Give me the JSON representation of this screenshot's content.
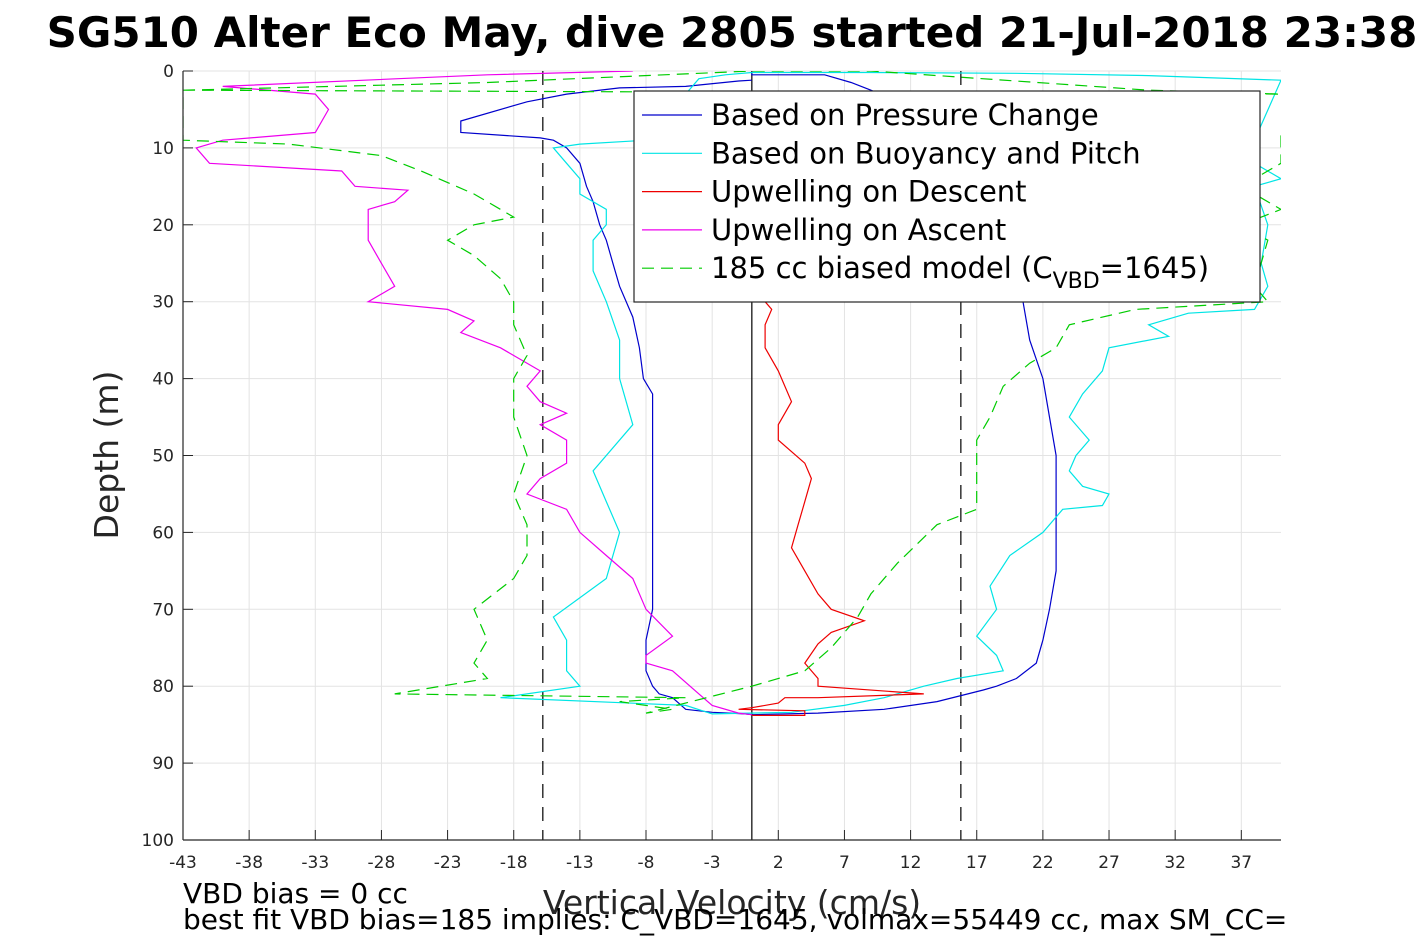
{
  "chart_data": {
    "type": "line",
    "title": "SG510 Alter Eco May, dive 2805 started 21-Jul-2018 23:38",
    "xlabel": "Vertical Velocity (cm/s)",
    "ylabel": "Depth (m)",
    "xlim": [
      -43,
      40
    ],
    "ylim": [
      0,
      100
    ],
    "y_reversed": true,
    "grid": true,
    "x_ticks": [
      -43,
      -38,
      -33,
      -28,
      -23,
      -18,
      -13,
      -8,
      -3,
      2,
      7,
      12,
      17,
      22,
      27,
      32,
      37
    ],
    "y_ticks": [
      0,
      10,
      20,
      30,
      40,
      50,
      60,
      70,
      80,
      90,
      100
    ],
    "legend_position": "top-right",
    "legend_label_parts": {
      "prefix": "185 cc biased model (C",
      "sub": "VBD",
      "suffix": "=1645)"
    },
    "reference_lines": [
      {
        "orientation": "vertical",
        "x": 0,
        "style": "solid",
        "color": "#000000"
      },
      {
        "orientation": "vertical",
        "x": -15.8,
        "style": "dashed",
        "color": "#000000"
      },
      {
        "orientation": "vertical",
        "x": 15.8,
        "style": "dashed",
        "color": "#000000"
      }
    ],
    "series": [
      {
        "name": "Based on Pressure Change",
        "color": "#0000cc",
        "style": "solid",
        "points": [
          [
            0,
            0.2
          ],
          [
            0,
            0.5
          ],
          [
            5.5,
            0.5
          ],
          [
            7.5,
            1.5
          ],
          [
            9,
            2.5
          ],
          [
            11,
            4
          ],
          [
            12.5,
            6
          ],
          [
            14,
            10
          ],
          [
            15.5,
            14
          ],
          [
            17,
            18
          ],
          [
            18.5,
            22
          ],
          [
            19.5,
            26
          ],
          [
            20.5,
            30
          ],
          [
            21,
            35
          ],
          [
            22,
            40
          ],
          [
            22.5,
            45
          ],
          [
            23,
            50
          ],
          [
            23,
            55
          ],
          [
            23,
            60
          ],
          [
            23,
            65
          ],
          [
            22.5,
            70
          ],
          [
            22,
            74
          ],
          [
            21.5,
            77
          ],
          [
            20,
            79
          ],
          [
            18.5,
            80
          ],
          [
            17.5,
            80.5
          ],
          [
            14,
            82
          ],
          [
            10,
            83
          ],
          [
            5,
            83.5
          ],
          [
            0,
            83.7
          ],
          [
            -0.5,
            83.6
          ],
          [
            -3,
            83.4
          ],
          [
            -5,
            83
          ],
          [
            -6,
            81.5
          ],
          [
            -7,
            81
          ],
          [
            -7.5,
            80
          ],
          [
            -8,
            78
          ],
          [
            -8,
            74
          ],
          [
            -7.5,
            70
          ],
          [
            -7.5,
            65
          ],
          [
            -7.5,
            60
          ],
          [
            -7.5,
            55
          ],
          [
            -7.5,
            50
          ],
          [
            -7.5,
            45
          ],
          [
            -7.5,
            42
          ],
          [
            -8.2,
            40
          ],
          [
            -8.5,
            36
          ],
          [
            -9,
            32
          ],
          [
            -10,
            28
          ],
          [
            -10.5,
            25
          ],
          [
            -11,
            22
          ],
          [
            -11.5,
            20
          ],
          [
            -12,
            17
          ],
          [
            -12.5,
            15
          ],
          [
            -13,
            12
          ],
          [
            -14,
            10
          ],
          [
            -15,
            9
          ],
          [
            -16,
            8.7
          ],
          [
            -22,
            8
          ],
          [
            -22,
            6.5
          ],
          [
            -17,
            4
          ],
          [
            -14,
            3
          ],
          [
            -10,
            2.2
          ],
          [
            -5,
            2
          ],
          [
            -1,
            1.3
          ],
          [
            0,
            1.2
          ]
        ]
      },
      {
        "name": "Based on Buoyancy and Pitch",
        "color": "#00e5e5",
        "style": "solid",
        "points": [
          [
            0,
            0.2
          ],
          [
            9,
            0.2
          ],
          [
            20,
            0.3
          ],
          [
            30,
            0.6
          ],
          [
            40,
            1.2
          ],
          [
            38,
            9
          ],
          [
            38,
            12
          ],
          [
            40,
            14
          ],
          [
            38,
            15
          ],
          [
            39,
            20
          ],
          [
            38.5,
            25
          ],
          [
            39,
            28
          ],
          [
            38,
            31
          ],
          [
            33,
            31.5
          ],
          [
            30,
            33
          ],
          [
            31.5,
            34.5
          ],
          [
            27,
            36
          ],
          [
            26.5,
            39
          ],
          [
            25,
            42
          ],
          [
            24,
            45
          ],
          [
            25.5,
            48
          ],
          [
            24.5,
            50
          ],
          [
            24,
            52
          ],
          [
            25,
            54
          ],
          [
            27,
            55
          ],
          [
            26.5,
            56.5
          ],
          [
            23.5,
            57
          ],
          [
            22,
            60
          ],
          [
            19.5,
            63
          ],
          [
            18,
            67
          ],
          [
            18.5,
            70
          ],
          [
            17,
            73.5
          ],
          [
            18.5,
            76
          ],
          [
            19,
            78
          ],
          [
            15.5,
            79
          ],
          [
            13,
            80
          ],
          [
            10,
            81.5
          ],
          [
            7,
            82.5
          ],
          [
            3,
            83.4
          ],
          [
            -3,
            83.6
          ],
          [
            -5,
            82.5
          ],
          [
            -19,
            81.5
          ],
          [
            -13,
            80
          ],
          [
            -14,
            78
          ],
          [
            -14,
            74
          ],
          [
            -15,
            71
          ],
          [
            -11,
            66
          ],
          [
            -10,
            60
          ],
          [
            -11,
            56
          ],
          [
            -12,
            52
          ],
          [
            -9,
            46
          ],
          [
            -10,
            40
          ],
          [
            -10,
            35
          ],
          [
            -11,
            30
          ],
          [
            -12,
            26
          ],
          [
            -12,
            22
          ],
          [
            -11,
            20
          ],
          [
            -11,
            18
          ],
          [
            -13,
            16
          ],
          [
            -13,
            14
          ],
          [
            -14,
            12
          ],
          [
            -15,
            10
          ],
          [
            -13,
            9.5
          ],
          [
            -8,
            9
          ],
          [
            -4,
            1
          ],
          [
            -2,
            0.5
          ],
          [
            0,
            0.2
          ]
        ]
      },
      {
        "name": "Upwelling on Descent",
        "color": "#ee0000",
        "style": "solid",
        "points": [
          [
            1,
            30
          ],
          [
            1.5,
            31
          ],
          [
            1,
            33
          ],
          [
            1,
            36
          ],
          [
            2,
            39
          ],
          [
            3,
            43
          ],
          [
            2,
            46
          ],
          [
            2,
            48
          ],
          [
            4,
            51
          ],
          [
            4.5,
            53
          ],
          [
            4,
            56
          ],
          [
            3.5,
            59
          ],
          [
            3,
            62
          ],
          [
            4,
            65
          ],
          [
            5,
            68
          ],
          [
            6,
            70
          ],
          [
            8.5,
            71.5
          ],
          [
            6,
            73
          ],
          [
            5,
            74.5
          ],
          [
            4,
            77
          ],
          [
            5,
            79
          ],
          [
            5,
            80
          ],
          [
            13,
            81
          ],
          [
            5,
            81.5
          ],
          [
            2.5,
            81.5
          ],
          [
            2,
            82.2
          ],
          [
            0,
            82.8
          ],
          [
            -1,
            83
          ],
          [
            4,
            83.2
          ],
          [
            4,
            83.8
          ],
          [
            0,
            83.8
          ]
        ]
      },
      {
        "name": "Upwelling on Ascent",
        "color": "#ee00ee",
        "style": "solid",
        "points": [
          [
            -9,
            0
          ],
          [
            -20,
            0.5
          ],
          [
            -40,
            2
          ],
          [
            -33,
            3
          ],
          [
            -32,
            5
          ],
          [
            -33,
            8
          ],
          [
            -40,
            9
          ],
          [
            -42,
            10
          ],
          [
            -41,
            12
          ],
          [
            -31,
            13
          ],
          [
            -30,
            15
          ],
          [
            -26,
            15.5
          ],
          [
            -27,
            17
          ],
          [
            -29,
            18
          ],
          [
            -29,
            20
          ],
          [
            -29,
            22
          ],
          [
            -28,
            25
          ],
          [
            -27,
            28
          ],
          [
            -29,
            30
          ],
          [
            -23,
            31
          ],
          [
            -21,
            32.5
          ],
          [
            -22,
            34
          ],
          [
            -19,
            36
          ],
          [
            -16,
            39
          ],
          [
            -17,
            41
          ],
          [
            -16,
            43
          ],
          [
            -14,
            44.5
          ],
          [
            -16,
            46
          ],
          [
            -14,
            48
          ],
          [
            -14,
            51
          ],
          [
            -16,
            53
          ],
          [
            -17,
            55
          ],
          [
            -14,
            57
          ],
          [
            -13,
            60
          ],
          [
            -11,
            63
          ],
          [
            -9,
            66
          ],
          [
            -8,
            70
          ],
          [
            -6,
            73.5
          ],
          [
            -8,
            76
          ],
          [
            -8,
            77
          ],
          [
            -6,
            78
          ],
          [
            -4,
            81
          ],
          [
            -3,
            82.5
          ],
          [
            -1,
            83.5
          ],
          [
            0,
            83.7
          ]
        ]
      },
      {
        "name": "185 cc biased model (C_VBD=1645)",
        "color": "#00cc00",
        "style": "dashed",
        "points": [
          [
            -43,
            2.5
          ],
          [
            40,
            3
          ],
          [
            30,
            2.5
          ],
          [
            9,
            0
          ],
          [
            0,
            0
          ],
          [
            -20,
            1.5
          ],
          [
            -43,
            2.5
          ],
          [
            -43,
            9
          ],
          [
            -35,
            9.5
          ],
          [
            -28,
            11
          ],
          [
            -25,
            13
          ],
          [
            -21,
            16
          ],
          [
            -18,
            19
          ],
          [
            -21,
            20
          ],
          [
            -23,
            22
          ],
          [
            -21,
            24
          ],
          [
            -19,
            27
          ],
          [
            -18,
            30
          ],
          [
            -18,
            33
          ],
          [
            -17,
            37
          ],
          [
            -18,
            40
          ],
          [
            -18,
            45
          ],
          [
            -17,
            50
          ],
          [
            -18,
            55
          ],
          [
            -17,
            59
          ],
          [
            -17,
            63
          ],
          [
            -18,
            66
          ],
          [
            -21,
            70
          ],
          [
            -20,
            74
          ],
          [
            -21,
            77
          ],
          [
            -20,
            79
          ],
          [
            -27,
            81
          ],
          [
            -5,
            81.5
          ],
          [
            -10,
            82
          ],
          [
            -6,
            83
          ],
          [
            -8,
            83.5
          ],
          [
            0,
            80
          ],
          [
            4,
            78
          ],
          [
            6,
            75
          ],
          [
            8,
            71
          ],
          [
            9,
            68
          ],
          [
            11,
            64
          ],
          [
            14,
            59
          ],
          [
            17,
            57
          ],
          [
            17,
            53
          ],
          [
            17,
            48
          ],
          [
            18,
            45
          ],
          [
            19,
            41
          ],
          [
            21,
            38
          ],
          [
            23,
            36
          ],
          [
            24,
            33
          ],
          [
            29,
            31
          ],
          [
            39,
            30
          ],
          [
            38,
            28
          ],
          [
            39,
            22
          ],
          [
            37,
            20
          ],
          [
            40,
            18
          ],
          [
            37,
            15
          ],
          [
            40,
            12
          ],
          [
            40,
            8
          ]
        ]
      }
    ],
    "footer_lines": [
      "VBD bias = 0 cc",
      "best fit VBD bias=185 implies: C_VBD=1645, volmax=55449 cc, max SM_CC="
    ]
  }
}
